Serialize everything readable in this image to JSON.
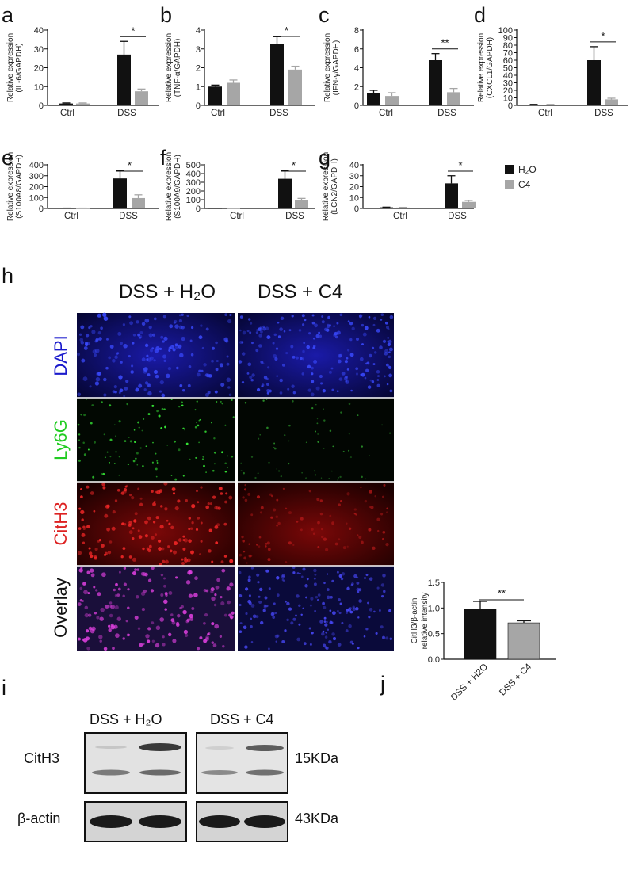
{
  "colors": {
    "h2o": "#111111",
    "c4": "#a6a6a6"
  },
  "legend": {
    "h2o": "H₂O",
    "c4": "C4"
  },
  "chart_data": [
    {
      "panel": "a",
      "type": "bar",
      "ylabel": [
        "Relative expression",
        "(IL-6/GAPDH)"
      ],
      "categories": [
        "Ctrl",
        "DSS"
      ],
      "ylim": [
        0,
        40
      ],
      "yticks": [
        0,
        10,
        20,
        30,
        40
      ],
      "series": [
        {
          "name": "H₂O",
          "values": [
            1,
            27
          ],
          "errors": [
            0.3,
            7
          ]
        },
        {
          "name": "C4",
          "values": [
            1,
            7.5
          ],
          "errors": [
            0.3,
            1.2
          ]
        }
      ],
      "sig": "*"
    },
    {
      "panel": "b",
      "type": "bar",
      "ylabel": [
        "Relative expression",
        "(TNF-α/GAPDH)"
      ],
      "categories": [
        "Ctrl",
        "DSS"
      ],
      "ylim": [
        0,
        4
      ],
      "yticks": [
        0,
        1,
        2,
        3,
        4
      ],
      "series": [
        {
          "name": "H₂O",
          "values": [
            1,
            3.25
          ],
          "errors": [
            0.08,
            0.4
          ]
        },
        {
          "name": "C4",
          "values": [
            1.2,
            1.9
          ],
          "errors": [
            0.15,
            0.18
          ]
        }
      ],
      "sig": "*"
    },
    {
      "panel": "c",
      "type": "bar",
      "ylabel": [
        "Relative expression",
        "(IFN-γ/GAPDH)"
      ],
      "categories": [
        "Ctrl",
        "DSS"
      ],
      "ylim": [
        0,
        8
      ],
      "yticks": [
        0,
        2,
        4,
        6,
        8
      ],
      "series": [
        {
          "name": "H₂O",
          "values": [
            1.3,
            4.8
          ],
          "errors": [
            0.3,
            0.7
          ]
        },
        {
          "name": "C4",
          "values": [
            1.0,
            1.4
          ],
          "errors": [
            0.35,
            0.4
          ]
        }
      ],
      "sig": "**"
    },
    {
      "panel": "d",
      "type": "bar",
      "ylabel": [
        "Relative expression",
        "(CXCL1/GAPDH)"
      ],
      "categories": [
        "Ctrl",
        "DSS"
      ],
      "ylim": [
        0,
        100
      ],
      "yticks": [
        0,
        10,
        20,
        30,
        40,
        50,
        60,
        70,
        80,
        90,
        100
      ],
      "series": [
        {
          "name": "H₂O",
          "values": [
            1,
            60
          ],
          "errors": [
            0.3,
            18
          ]
        },
        {
          "name": "C4",
          "values": [
            1,
            8
          ],
          "errors": [
            0.3,
            1.5
          ]
        }
      ],
      "sig": "*"
    },
    {
      "panel": "e",
      "type": "bar",
      "ylabel": [
        "Relative expression",
        "(S100A8/GAPDH)"
      ],
      "categories": [
        "Ctrl",
        "DSS"
      ],
      "ylim": [
        0,
        400
      ],
      "yticks": [
        0,
        100,
        200,
        300,
        400
      ],
      "series": [
        {
          "name": "H₂O",
          "values": [
            2,
            275
          ],
          "errors": [
            1,
            75
          ]
        },
        {
          "name": "C4",
          "values": [
            2,
            95
          ],
          "errors": [
            1,
            30
          ]
        }
      ],
      "sig": "*"
    },
    {
      "panel": "f",
      "type": "bar",
      "ylabel": [
        "Relative expression",
        "(S100A9/GAPDH)"
      ],
      "categories": [
        "Ctrl",
        "DSS"
      ],
      "ylim": [
        0,
        500
      ],
      "yticks": [
        0,
        100,
        200,
        300,
        400,
        500
      ],
      "series": [
        {
          "name": "H₂O",
          "values": [
            2,
            340
          ],
          "errors": [
            1,
            95
          ]
        },
        {
          "name": "C4",
          "values": [
            2,
            95
          ],
          "errors": [
            1,
            20
          ]
        }
      ],
      "sig": "*"
    },
    {
      "panel": "g",
      "type": "bar",
      "ylabel": [
        "Relative expression",
        "(LCN2/GAPDH)"
      ],
      "categories": [
        "Ctrl",
        "DSS"
      ],
      "ylim": [
        0,
        40
      ],
      "yticks": [
        0,
        10,
        20,
        30,
        40
      ],
      "series": [
        {
          "name": "H₂O",
          "values": [
            1,
            23
          ],
          "errors": [
            0.2,
            7
          ]
        },
        {
          "name": "C4",
          "values": [
            0.8,
            6
          ],
          "errors": [
            0.2,
            1.3
          ]
        }
      ],
      "sig": "*"
    },
    {
      "panel": "j",
      "type": "bar",
      "ylabel": [
        "CitH3/β-actin",
        "relative intensity"
      ],
      "categories": [
        "DSS + H2O",
        "DSS + C4"
      ],
      "ylim": [
        0,
        1.5
      ],
      "yticks": [
        "0.0",
        "0.5",
        "1.0",
        "1.5"
      ],
      "series": [
        {
          "name": "",
          "values": [
            0.98,
            0.71
          ],
          "errors": [
            0.15,
            0.04
          ]
        }
      ],
      "sig": "**"
    }
  ],
  "panel_h": {
    "label": "h",
    "columns": [
      "DSS + H₂O",
      "DSS + C4"
    ],
    "rows": [
      "DAPI",
      "Ly6G",
      "CitH3",
      "Overlay"
    ]
  },
  "panel_i": {
    "label": "i",
    "groups": [
      "DSS + H₂O",
      "DSS + C4"
    ],
    "rows": [
      "CitH3",
      "β-actin"
    ],
    "sizes": [
      "15KDa",
      "43KDa"
    ]
  }
}
